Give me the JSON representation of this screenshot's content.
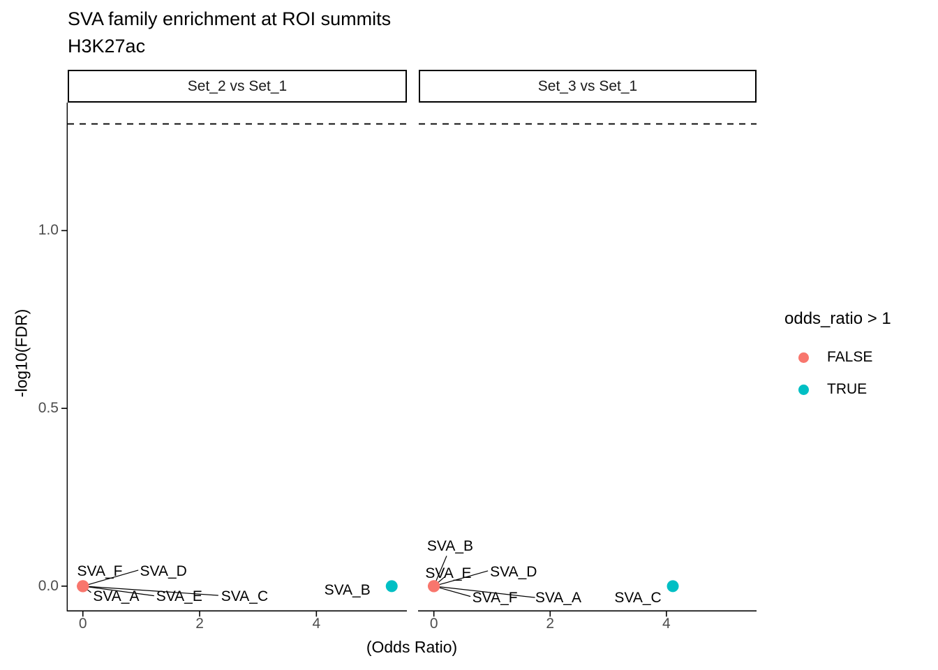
{
  "chart_data": {
    "type": "scatter",
    "title": "SVA family enrichment at ROI summits",
    "subtitle": "H3K27ac",
    "xlabel": "(Odds Ratio)",
    "ylabel": "-log10(FDR)",
    "grid": "off",
    "legend_position": "right",
    "x_range": [
      -0.26,
      5.55
    ],
    "y_range": [
      -0.069,
      1.36
    ],
    "x_ticks": [
      {
        "v": 0,
        "label": "0"
      },
      {
        "v": 2,
        "label": "2"
      },
      {
        "v": 4,
        "label": "4"
      }
    ],
    "y_ticks": [
      {
        "v": 0.0,
        "label": "0.0"
      },
      {
        "v": 0.5,
        "label": "0.5"
      },
      {
        "v": 1.0,
        "label": "1.0"
      }
    ],
    "threshold_dashed_line_y": 1.3,
    "colors": {
      "false_color": "#F8766D",
      "true_color": "#00BFC4",
      "axis_text": "#4D4D4D",
      "line": "#000000"
    },
    "legend": {
      "title": "odds_ratio > 1",
      "entries": [
        {
          "label": "FALSE",
          "value": false
        },
        {
          "label": "TRUE",
          "value": true
        }
      ]
    },
    "facets": [
      {
        "label": "Set_2 vs Set_1",
        "points": [
          {
            "name": "SVA_A",
            "x": 0,
            "y": 0,
            "odds_ratio_gt1": false,
            "label_x": 0.57,
            "label_y": -0.029,
            "anchor_x": 0.14,
            "anchor_y": -0.018
          },
          {
            "name": "SVA_B",
            "x": 5.29,
            "y": 0,
            "odds_ratio_gt1": true,
            "label_x": 4.53,
            "label_y": -0.012
          },
          {
            "name": "SVA_C",
            "x": 0,
            "y": 0,
            "odds_ratio_gt1": false,
            "label_x": 2.77,
            "label_y": -0.029,
            "anchor_x": 2.32,
            "anchor_y": -0.026
          },
          {
            "name": "SVA_D",
            "x": 0,
            "y": 0,
            "odds_ratio_gt1": false,
            "label_x": 1.38,
            "label_y": 0.041,
            "anchor_x": 0.95,
            "anchor_y": 0.045
          },
          {
            "name": "SVA_E",
            "x": 0,
            "y": 0,
            "odds_ratio_gt1": false,
            "label_x": 1.65,
            "label_y": -0.029,
            "anchor_x": 1.22,
            "anchor_y": -0.027
          },
          {
            "name": "SVA_F",
            "x": 0,
            "y": 0,
            "odds_ratio_gt1": false,
            "label_x": 0.29,
            "label_y": 0.041
          }
        ]
      },
      {
        "label": "Set_3 vs Set_1",
        "points": [
          {
            "name": "SVA_A",
            "x": 0,
            "y": 0,
            "odds_ratio_gt1": false,
            "label_x": 2.14,
            "label_y": -0.033,
            "anchor_x": 1.74,
            "anchor_y": -0.032
          },
          {
            "name": "SVA_B",
            "x": 0,
            "y": 0,
            "odds_ratio_gt1": false,
            "label_x": 0.28,
            "label_y": 0.112,
            "anchor_x": 0.22,
            "anchor_y": 0.085
          },
          {
            "name": "SVA_C",
            "x": 4.11,
            "y": 0,
            "odds_ratio_gt1": true,
            "label_x": 3.51,
            "label_y": -0.033
          },
          {
            "name": "SVA_D",
            "x": 0,
            "y": 0,
            "odds_ratio_gt1": false,
            "label_x": 1.37,
            "label_y": 0.039,
            "anchor_x": 0.93,
            "anchor_y": 0.043
          },
          {
            "name": "SVA_E",
            "x": 0,
            "y": 0,
            "odds_ratio_gt1": false,
            "label_x": 0.25,
            "label_y": 0.035,
            "anchor_x": 0.2,
            "anchor_y": 0.028
          },
          {
            "name": "SVA_F",
            "x": 0,
            "y": 0,
            "odds_ratio_gt1": false,
            "label_x": 1.05,
            "label_y": -0.033,
            "anchor_x": 0.63,
            "anchor_y": -0.029
          }
        ]
      }
    ]
  }
}
